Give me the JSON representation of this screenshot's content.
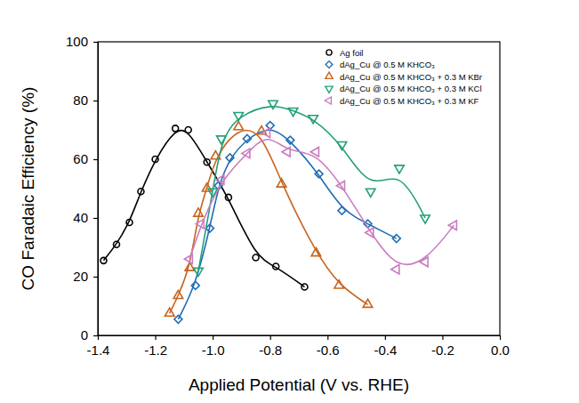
{
  "chart_data": {
    "type": "scatter",
    "x_label": "Applied Potential (V vs. RHE)",
    "y_label": "CO Faradaic Efficiency (%)",
    "xlim": [
      -1.4,
      0
    ],
    "ylim": [
      0,
      100
    ],
    "xticks": [
      -1.4,
      -1.2,
      {
        "value": -1,
        "label": "-1.0"
      },
      -0.8,
      -0.6,
      -0.4,
      -0.2,
      {
        "value": 0,
        "label": "0.0"
      }
    ],
    "yticks": [
      0,
      20,
      40,
      60,
      80,
      100
    ],
    "grid": false,
    "legend": "upper right",
    "series": [
      {
        "name": "Ag foil",
        "color": "#000000",
        "marker": "circle",
        "line_style": "smooth",
        "x": [
          -1.38,
          -1.335,
          -1.29,
          -1.25,
          -1.2,
          -1.13,
          -1.085,
          -1.02,
          -0.945,
          -0.85,
          -0.78,
          -0.68
        ],
        "values": [
          25.5,
          31,
          38.5,
          49,
          60,
          70.5,
          70,
          59,
          47,
          26.5,
          23.5,
          16.5
        ]
      },
      {
        "name": "dAg_Cu @ 0.5 M KHCO₃",
        "color": "#1f6db4",
        "marker": "diamond",
        "line_style": "smooth",
        "x": [
          -1.12,
          -1.06,
          -1.01,
          -0.98,
          -0.94,
          -0.88,
          -0.8,
          -0.73,
          -0.63,
          -0.55,
          -0.46,
          -0.36
        ],
        "values": [
          5.5,
          17,
          36.5,
          51,
          60.5,
          67,
          71.5,
          66.5,
          55,
          42.5,
          38,
          33
        ]
      },
      {
        "name": "dAg_Cu @ 0.5 M KHCO₃ + 0.3 M KBr",
        "color": "#c8641e",
        "marker": "triangle-up",
        "line_style": "smooth",
        "x": [
          -1.15,
          -1.12,
          -1.08,
          -1.05,
          -1.02,
          -0.99,
          -0.91,
          -0.83,
          -0.76,
          -0.64,
          -0.56,
          -0.46
        ],
        "values": [
          7.5,
          13.5,
          23,
          41.5,
          50,
          61,
          71,
          69.5,
          51.5,
          28,
          17,
          10.5
        ]
      },
      {
        "name": "dAg_Cu @ 0.5 M KHCO₃ + 0.3 M KCl",
        "color": "#24a07a",
        "marker": "triangle-down",
        "line_style": "smooth",
        "x": [
          -1.05,
          -1.0,
          -0.97,
          -0.91,
          -0.79,
          -0.72,
          -0.65,
          -0.55,
          -0.45,
          -0.35,
          -0.26
        ],
        "values": [
          22,
          49,
          67,
          75,
          79,
          76.5,
          74,
          65,
          49,
          57,
          40
        ]
      },
      {
        "name": "dAg_Cu @ 0.5 M KHCO₃ + 0.3 M KF",
        "color": "#c97cc0",
        "marker": "triangle-left",
        "line_style": "smooth",
        "x": [
          -1.08,
          -1.04,
          -0.97,
          -0.88,
          -0.81,
          -0.74,
          -0.64,
          -0.55,
          -0.45,
          -0.36,
          -0.26,
          -0.16
        ],
        "values": [
          26,
          38,
          53,
          62,
          69,
          62.5,
          62.5,
          51,
          35,
          22.5,
          25,
          37.5
        ]
      }
    ]
  }
}
